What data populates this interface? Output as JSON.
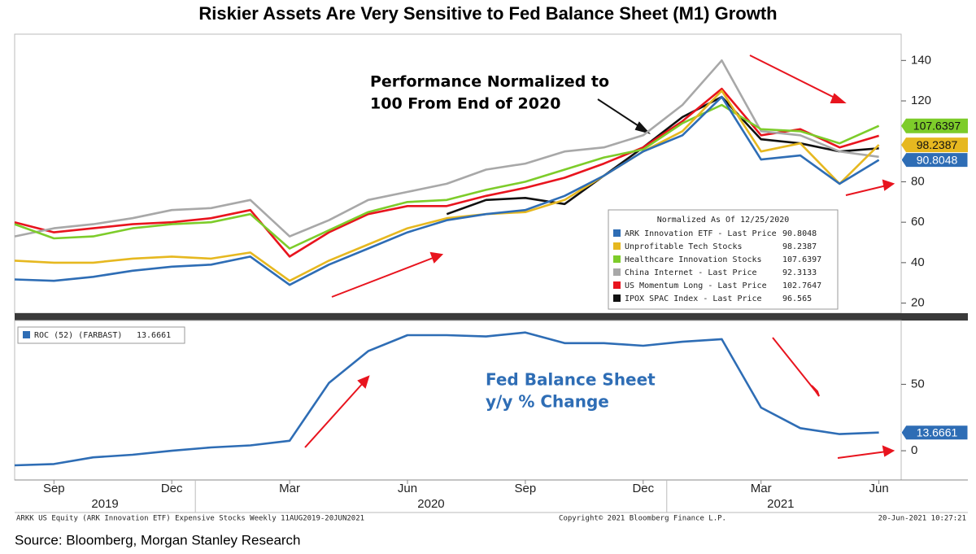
{
  "title": "Riskier Assets Are Very Sensitive to Fed Balance Sheet (M1) Growth",
  "chart_data": [
    {
      "type": "line",
      "categories": [
        null,
        "Sep",
        null,
        null,
        "Dec",
        null,
        null,
        "Mar",
        null,
        null,
        "Jun",
        null,
        null,
        "Sep",
        null,
        null,
        "Dec",
        null,
        null,
        "Mar",
        null,
        null,
        "Jun"
      ],
      "years": [
        "2019",
        "2020",
        "2021"
      ],
      "annotation": [
        "Performance Normalized to",
        "100 From End of 2020"
      ],
      "legend_title": "Normalized As Of 12/25/2020",
      "ylim": [
        15,
        153
      ],
      "yticks": [
        20,
        40,
        60,
        80,
        120,
        140
      ],
      "series": [
        {
          "name": "ARK Innovation ETF - Last Price",
          "color": "#2e6db5",
          "tag": true,
          "values": [
            31.7,
            31,
            33,
            36,
            38,
            39,
            43,
            29,
            39,
            47,
            55,
            61,
            64,
            66,
            73,
            83,
            95,
            103,
            122,
            91,
            93,
            79,
            90.8048
          ]
        },
        {
          "name": "Unprofitable Tech Stocks",
          "color": "#e6b820",
          "tag": true,
          "values": [
            41,
            40,
            40,
            42,
            43,
            42,
            45,
            31,
            41,
            49,
            57,
            62,
            64,
            65,
            71,
            83,
            95,
            105,
            125,
            95,
            99,
            79,
            98.2387
          ]
        },
        {
          "name": "Healthcare Innovation Stocks",
          "color": "#7dcc2a",
          "tag": true,
          "values": [
            59,
            52,
            53,
            57,
            59,
            60,
            64,
            47,
            56,
            65,
            70,
            71,
            76,
            80,
            86,
            92,
            96,
            109,
            118,
            106,
            105,
            99,
            107.6397
          ]
        },
        {
          "name": "China Internet - Last Price",
          "color": "#a8a8a8",
          "tag": false,
          "values": [
            53,
            57,
            59,
            62,
            66,
            67,
            71,
            53,
            61,
            71,
            75,
            79,
            86,
            89,
            95,
            97,
            103,
            118,
            140,
            105,
            103,
            95,
            92.3133
          ]
        },
        {
          "name": "US Momentum Long - Last Price",
          "color": "#e8141e",
          "tag": false,
          "values": [
            60,
            55,
            57,
            59,
            60,
            62,
            66,
            43,
            55,
            64,
            68,
            68,
            73,
            77,
            82,
            89,
            97,
            110,
            126,
            103,
            106,
            97,
            102.7647
          ]
        },
        {
          "name": "IPOX SPAC Index - Last Price",
          "color": "#111111",
          "tag": false,
          "values": [
            null,
            null,
            null,
            null,
            null,
            null,
            null,
            null,
            null,
            null,
            null,
            64,
            71,
            72,
            69,
            83,
            97,
            112,
            122,
            101,
            99,
            95,
            96.565
          ]
        }
      ]
    },
    {
      "type": "line",
      "annotation": [
        "Fed Balance Sheet",
        "y/y % Change"
      ],
      "ylim": [
        -22,
        98
      ],
      "yticks": [
        0,
        50
      ],
      "series": [
        {
          "name": "ROC (52) (FARBAST)",
          "color": "#2e6db5",
          "tag": true,
          "values": [
            -11,
            -10,
            -5,
            -3,
            0,
            2.5,
            4,
            7.5,
            51,
            75,
            87,
            87,
            86,
            89,
            81,
            81,
            79,
            82,
            84,
            32.5,
            17,
            12.5,
            13.6661
          ]
        }
      ]
    }
  ],
  "footer": {
    "left": "ARKK US Equity (ARK Innovation ETF) Expensive Stocks  Weekly 11AUG2019-20JUN2021",
    "center": "Copyright© 2021 Bloomberg Finance L.P.",
    "right": "20-Jun-2021 10:27:21"
  },
  "source": "Source: Bloomberg, Morgan Stanley Research"
}
